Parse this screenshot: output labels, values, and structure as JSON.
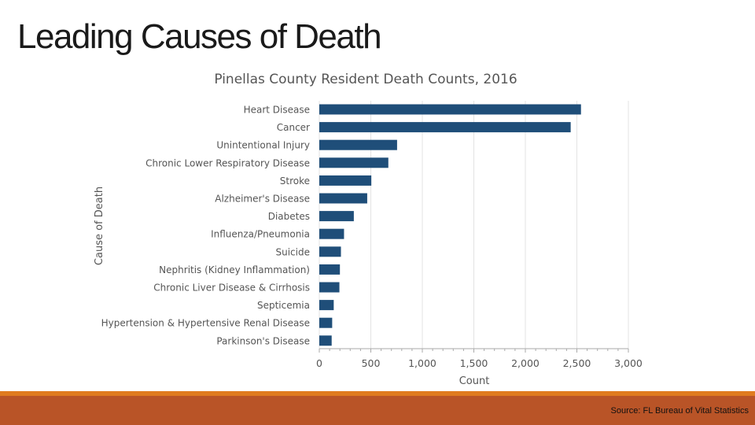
{
  "slide": {
    "title": "Leading Causes of Death",
    "source": "Source: FL Bureau of Vital Statistics"
  },
  "colors": {
    "bar": "#1f4e79",
    "footer_accent": "#e07b1f",
    "footer_bar": "#b95427"
  },
  "chart_data": {
    "type": "bar",
    "orientation": "horizontal",
    "title": "Pinellas County Resident Death Counts, 2016",
    "xlabel": "Count",
    "ylabel": "Cause of Death",
    "xlim": [
      0,
      3000
    ],
    "xticks": [
      0,
      500,
      1000,
      1500,
      2000,
      2500,
      3000
    ],
    "xtick_labels": [
      "0",
      "500",
      "1,000",
      "1,500",
      "2,000",
      "2,500",
      "3,000"
    ],
    "grid": true,
    "categories": [
      "Heart Disease",
      "Cancer",
      "Unintentional Injury",
      "Chronic Lower Respiratory Disease",
      "Stroke",
      "Alzheimer's Disease",
      "Diabetes",
      "Influenza/Pneumonia",
      "Suicide",
      "Nephritis (Kidney Inflammation)",
      "Chronic Liver Disease & Cirrhosis",
      "Septicemia",
      "Hypertension & Hypertensive Renal Disease",
      "Parkinson's Disease"
    ],
    "values": [
      2540,
      2440,
      755,
      670,
      505,
      465,
      335,
      240,
      210,
      200,
      195,
      140,
      125,
      120
    ]
  }
}
